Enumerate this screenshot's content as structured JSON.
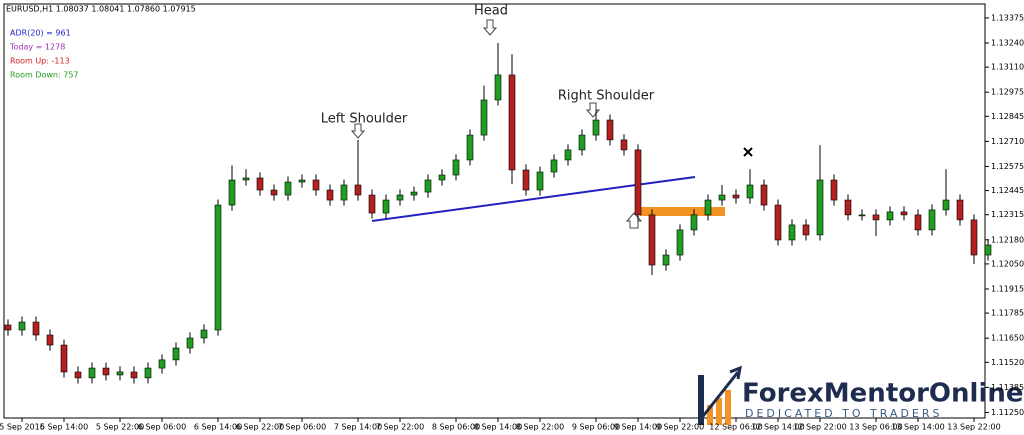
{
  "chart_data": {
    "type": "candlestick",
    "title": "EURUSD,H1  1.08037 1.08041 1.07860 1.07915",
    "indicators": [
      {
        "text": "ADR(20) = 961",
        "color": "#2323c8"
      },
      {
        "text": "Today = 1278",
        "color": "#9b30b0"
      },
      {
        "text": "Room Up: -113",
        "color": "#d02020"
      },
      {
        "text": "Room Down: 757",
        "color": "#20a020"
      }
    ],
    "annotations": [
      "Left Shoulder",
      "Head",
      "Right Shoulder"
    ],
    "up_color": "#1f9e1f",
    "down_color": "#b32020",
    "categories": [
      null,
      "5 Sep 2016",
      null,
      null,
      "5 Sep 14:00",
      null,
      null,
      null,
      "5 Sep 22:00",
      null,
      null,
      "6 Sep 06:00",
      null,
      null,
      null,
      "6 Sep 14:00",
      null,
      null,
      "6 Sep 22:00",
      null,
      null,
      "7 Sep 06:00",
      null,
      null,
      null,
      "7 Sep 14:00",
      null,
      null,
      "7 Sep 22:00",
      null,
      null,
      null,
      "8 Sep 06:00",
      null,
      null,
      "8 Sep 14:00",
      null,
      null,
      "8 Sep 22:00",
      null,
      null,
      null,
      "9 Sep 06:00",
      null,
      null,
      "9 Sep 14:00",
      null,
      null,
      "9 Sep 22:00",
      null,
      null,
      null,
      "12 Sep 06:00",
      null,
      null,
      "12 Sep 14:00",
      null,
      null,
      "12 Sep 22:00",
      null,
      null,
      null,
      "13 Sep 06:00",
      null,
      null,
      "13 Sep 14:00",
      null,
      null,
      null,
      "13 Sep 22:00",
      null
    ],
    "open": [
      1.11721,
      1.11694,
      1.11737,
      1.11667,
      1.11613,
      1.11468,
      1.11436,
      1.11489,
      1.11452,
      1.11468,
      1.11436,
      1.11489,
      1.11533,
      1.11597,
      1.11651,
      1.11694,
      1.12367,
      1.12502,
      1.12513,
      1.12448,
      1.12421,
      1.12491,
      1.12502,
      1.12448,
      1.12394,
      1.12475,
      1.12421,
      1.12324,
      1.12394,
      1.12421,
      1.12437,
      1.12502,
      1.12529,
      1.1261,
      1.12744,
      1.12933,
      1.13068,
      1.12556,
      1.12448,
      1.12545,
      1.1261,
      1.12664,
      1.12744,
      1.12825,
      1.12718,
      1.12664,
      1.12314,
      1.12044,
      1.12098,
      1.12233,
      1.12314,
      1.12394,
      1.12421,
      1.12405,
      1.12475,
      1.12367,
      1.12179,
      1.1226,
      1.12206,
      1.12502,
      1.12394,
      1.12314,
      1.12314,
      1.12287,
      1.1233,
      1.12314,
      1.12233,
      1.12341,
      1.12394,
      1.12287,
      1.12098
    ],
    "high": [
      1.11751,
      1.11767,
      1.11767,
      1.11697,
      1.11643,
      1.11498,
      1.11519,
      1.11519,
      1.11498,
      1.11498,
      1.11519,
      1.11563,
      1.11627,
      1.11681,
      1.11724,
      1.12397,
      1.1258,
      1.1256,
      1.12543,
      1.12478,
      1.12521,
      1.12532,
      1.12532,
      1.12478,
      1.12505,
      1.12718,
      1.12451,
      1.12424,
      1.12451,
      1.12467,
      1.12532,
      1.12559,
      1.1264,
      1.12774,
      1.1301,
      1.1324,
      1.1318,
      1.12586,
      1.12575,
      1.1264,
      1.12694,
      1.12774,
      1.1288,
      1.12855,
      1.12748,
      1.12694,
      1.12344,
      1.12128,
      1.12263,
      1.12344,
      1.12424,
      1.12475,
      1.12451,
      1.1256,
      1.12505,
      1.12397,
      1.1229,
      1.1229,
      1.1269,
      1.12532,
      1.12424,
      1.12344,
      1.12344,
      1.1236,
      1.1236,
      1.12344,
      1.12371,
      1.1256,
      1.12424,
      1.12317,
      1.12182
    ],
    "low": [
      1.11664,
      1.11664,
      1.11637,
      1.11583,
      1.11438,
      1.11406,
      1.11406,
      1.11422,
      1.11422,
      1.11406,
      1.11406,
      1.11459,
      1.11503,
      1.11567,
      1.11621,
      1.11664,
      1.12337,
      1.12472,
      1.12418,
      1.12391,
      1.12391,
      1.12461,
      1.12418,
      1.12364,
      1.12364,
      1.12391,
      1.12294,
      1.12294,
      1.12364,
      1.12391,
      1.12407,
      1.12472,
      1.12499,
      1.1258,
      1.12714,
      1.12903,
      1.1248,
      1.12418,
      1.12418,
      1.12515,
      1.1258,
      1.12634,
      1.12714,
      1.12688,
      1.12634,
      1.12284,
      1.1199,
      1.12014,
      1.12068,
      1.12203,
      1.12284,
      1.12364,
      1.12375,
      1.12375,
      1.12337,
      1.12149,
      1.12149,
      1.12176,
      1.12176,
      1.12364,
      1.12284,
      1.12284,
      1.122,
      1.12257,
      1.12284,
      1.12203,
      1.12203,
      1.12311,
      1.12257,
      1.1205,
      1.12068
    ],
    "close": [
      1.11694,
      1.11737,
      1.11667,
      1.11613,
      1.11468,
      1.11436,
      1.11489,
      1.11452,
      1.11468,
      1.11436,
      1.11489,
      1.11533,
      1.11597,
      1.11651,
      1.11694,
      1.12367,
      1.12502,
      1.12513,
      1.12448,
      1.12421,
      1.12491,
      1.12502,
      1.12448,
      1.12394,
      1.12475,
      1.12421,
      1.12324,
      1.12394,
      1.12421,
      1.12437,
      1.12502,
      1.12529,
      1.1261,
      1.12744,
      1.12933,
      1.13068,
      1.12556,
      1.12448,
      1.12545,
      1.1261,
      1.12664,
      1.12744,
      1.12825,
      1.12718,
      1.12664,
      1.12314,
      1.12044,
      1.12098,
      1.12233,
      1.12314,
      1.12394,
      1.12421,
      1.12405,
      1.12475,
      1.12367,
      1.12179,
      1.1226,
      1.12206,
      1.12502,
      1.12394,
      1.12314,
      1.12314,
      1.12287,
      1.1233,
      1.12314,
      1.12233,
      1.12341,
      1.12394,
      1.12287,
      1.12098,
      1.12152
    ],
    "ylim": [
      1.1122,
      1.1345
    ],
    "yticks": [
      1.13375,
      {
        "value": 1.1324,
        "label": "1.13240"
      },
      {
        "value": 1.1311,
        "label": "1.13110"
      },
      1.12975,
      1.12845,
      {
        "value": 1.1271,
        "label": "1.12710"
      },
      1.12575,
      1.12445,
      1.12315,
      {
        "value": 1.1218,
        "label": "1.12180"
      },
      {
        "value": 1.1205,
        "label": "1.12050"
      },
      1.11915,
      1.11785,
      {
        "value": 1.1165,
        "label": "1.11650"
      },
      {
        "value": 1.1152,
        "label": "1.11520"
      },
      1.11385,
      {
        "value": 1.1125,
        "label": "1.11250"
      }
    ]
  },
  "logo": {
    "name": "ForexMentorOnline",
    "tagline": "DEDICATED TO TRADERS"
  }
}
